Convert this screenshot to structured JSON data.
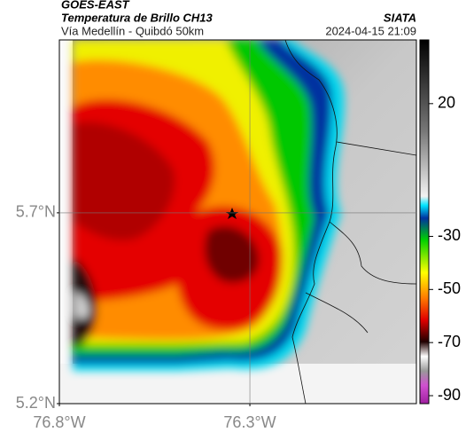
{
  "header": {
    "title": "GOES-EAST",
    "subtitle": "Temperatura de Brillo CH13",
    "route": "Vía Medellín - Quibdó 50km",
    "source": "SIATA",
    "timestamp": "2024-04-15 21:09"
  },
  "map": {
    "lat_lim": [
      5.2,
      6.153
    ],
    "lat_ticks": [
      {
        "value": 5.7,
        "label": "5.7°N"
      },
      {
        "value": 5.2,
        "label": "5.2°N"
      }
    ],
    "lon_lim": [
      -76.8,
      -75.863
    ],
    "lon_ticks": [
      {
        "value": -76.8,
        "label": "76.8°W"
      },
      {
        "value": -76.3,
        "label": "76.3°W"
      }
    ]
  },
  "colorbar": {
    "lim": [
      -93,
      44
    ],
    "ticks": [
      20,
      -30,
      -50,
      -70,
      -90
    ]
  }
}
